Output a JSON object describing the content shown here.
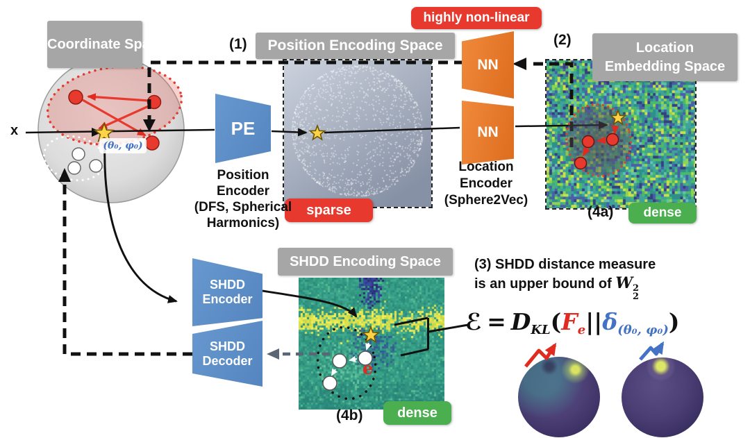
{
  "labels": {
    "coordinate_space": "Coordinate Space",
    "position_encoding_space": "Position Encoding Space",
    "location_embedding_l1": "Location",
    "location_embedding_l2": "Embedding Space",
    "shdd_encoding_space": "SHDD Encoding Space"
  },
  "badges": {
    "highly_non_linear": "highly non-linear",
    "sparse": "sparse",
    "dense_a": "dense",
    "dense_b": "dense"
  },
  "step_markers": {
    "s1": "(1)",
    "s2": "(2)",
    "s4a": "(4a)",
    "s4b": "(4b)"
  },
  "blocks": {
    "pe": "PE",
    "nn_top": "NN",
    "nn_bottom": "NN",
    "shdd_encoder_l1": "SHDD",
    "shdd_encoder_l2": "Encoder",
    "shdd_decoder_l1": "SHDD",
    "shdd_decoder_l2": "Decoder"
  },
  "captions": {
    "position_encoder": [
      "Position",
      "Encoder",
      "(DFS, Spherical",
      "Harmonics)"
    ],
    "location_encoder": [
      "Location",
      "Encoder",
      "(Sphere2Vec)"
    ]
  },
  "annotations": {
    "x_input": "x",
    "theta_phi": "(θ₀, φ₀)",
    "e_vector": "e",
    "note3_l1": "(3) SHDD distance measure",
    "note3_l2": "is an upper bound of",
    "w_base": "W",
    "w_sup": "2",
    "w_sub": "2"
  },
  "equation": {
    "lhs": "ℰ",
    "equals": "=",
    "op": "D",
    "op_sub": "KL",
    "open": "(",
    "arg1": "F",
    "arg1_sub": "e",
    "bars": "||",
    "arg2": "δ",
    "arg2_sub": "(θ₀, φ₀)",
    "close": ")"
  },
  "colors": {
    "red_badge": "#E8392E",
    "green_badge": "#4BAE4F",
    "gray_label": "#A6A6A6",
    "blue_block": "#5E8FC7",
    "orange_block": "#ED7D31",
    "accent_red": "#E02B20",
    "accent_blue": "#4472C4",
    "star_gold": "#FFD348"
  }
}
